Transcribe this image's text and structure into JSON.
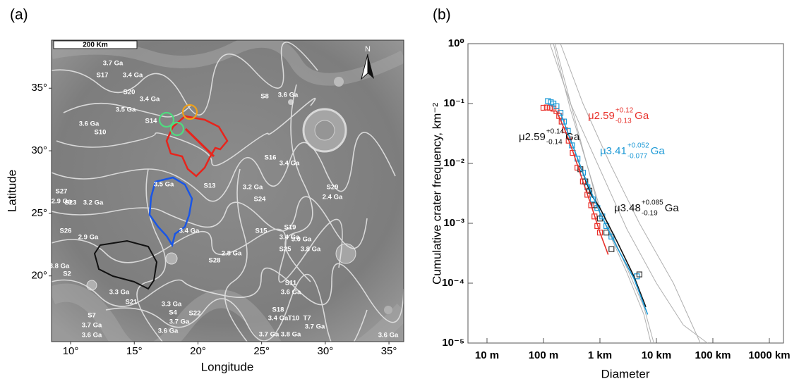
{
  "map": {
    "panel_label": "(a)",
    "scale_bar": "200 Km",
    "north": "N",
    "x_axis_label": "Longitude",
    "y_axis_label": "Latitude",
    "xlim": [
      8.5,
      36.16
    ],
    "ylim": [
      14.75,
      38.84
    ],
    "xticks": [
      {
        "value": 10,
        "label": "10°"
      },
      {
        "value": 15,
        "label": "15°"
      },
      {
        "value": 20,
        "label": "20°"
      },
      {
        "value": 25,
        "label": "25°"
      },
      {
        "value": 30,
        "label": "30°"
      },
      {
        "value": 35,
        "label": "35°"
      }
    ],
    "yticks": [
      {
        "value": 20,
        "label": "20°"
      },
      {
        "value": 25,
        "label": "25°"
      },
      {
        "value": 30,
        "label": "30°"
      },
      {
        "value": 35,
        "label": "35°"
      }
    ],
    "unit_labels": [
      "3.7 Ga",
      "S17",
      "3.4 Ga",
      "S20",
      "3.4 Ga",
      "3.5 Ga",
      "S14",
      "3.6 Ga",
      "S10",
      "S8",
      "3.6 Ga",
      "S16",
      "3.4 Ga",
      "S13",
      "3.5 Ga",
      "3.2 Ga",
      "S24",
      "S29",
      "2.4 Ga",
      "S27",
      "2.9 Ga",
      "S23",
      "3.2 Ga",
      "S26",
      "2.9 Ga",
      "3.4 Ga",
      "S15",
      "S19",
      "3.4 Ga",
      "3.0 Ga",
      "S25",
      "3.8 Ga",
      "2.8 Ga",
      "S28",
      "3.8 Ga",
      "S2",
      "3.3 Ga",
      "S21",
      "S11",
      "3.6 Ga",
      "3.3 Ga",
      "S4",
      "S22",
      "3.7 Ga",
      "S18",
      "3.4 Ga",
      "T10",
      "T7",
      "3.7 Ga",
      "S7",
      "3.7 Ga",
      "3.6 Ga",
      "3.6 Ga",
      "3.7 Ga",
      "3.8 Ga",
      "3.6 Ga"
    ]
  },
  "chart_data": {
    "type": "line",
    "panel_label": "(b)",
    "x_label": "Diameter",
    "y_label": "Cumulative crater frequency, km⁻²",
    "xscale": "log",
    "yscale": "log",
    "xlim": [
      0.0046,
      1780
    ],
    "ylim": [
      1e-05,
      1
    ],
    "xticks": [
      {
        "value": 0.01,
        "label": "10 m"
      },
      {
        "value": 0.1,
        "label": "100 m"
      },
      {
        "value": 1,
        "label": "1 km"
      },
      {
        "value": 10,
        "label": "10 km"
      },
      {
        "value": 100,
        "label": "100 km"
      },
      {
        "value": 1000,
        "label": "1000 km"
      }
    ],
    "yticks": [
      {
        "value": 1e-05,
        "label": "10⁻⁵"
      },
      {
        "value": 0.0001,
        "label": "10⁻⁴"
      },
      {
        "value": 0.001,
        "label": "10⁻³"
      },
      {
        "value": 0.01,
        "label": "10⁻²"
      },
      {
        "value": 0.1,
        "label": "10⁻¹"
      },
      {
        "value": 1,
        "label": "10⁰"
      }
    ],
    "series": [
      {
        "color": "#b0b0b0",
        "marker": "none",
        "x": [
          0.13,
          0.3,
          1,
          3,
          10,
          30,
          80
        ],
        "values": [
          1,
          0.1,
          0.008,
          0.0008,
          0.0001,
          2e-05,
          1e-05
        ]
      },
      {
        "color": "#b0b0b0",
        "marker": "none",
        "x": [
          0.2,
          0.5,
          1.5,
          5,
          20,
          60
        ],
        "values": [
          1,
          0.1,
          0.01,
          0.001,
          0.0001,
          1e-05
        ]
      },
      {
        "color": "#b0b0b0",
        "marker": "none",
        "x": [
          0.15,
          0.3,
          1,
          3,
          6,
          9
        ],
        "values": [
          1,
          0.08,
          0.0018,
          0.00018,
          4e-05,
          1e-05
        ]
      },
      {
        "color": "#b0b0b0",
        "marker": "none",
        "x": [
          0.16,
          0.35,
          1,
          3,
          6,
          8
        ],
        "values": [
          1,
          0.06,
          0.0015,
          0.00015,
          3e-05,
          1e-05
        ]
      },
      {
        "color": "#e8302a",
        "marker": "square",
        "x": [
          0.1,
          0.115,
          0.13,
          0.15,
          0.17,
          0.19,
          0.21,
          0.24,
          0.28,
          0.33,
          0.4,
          0.5,
          0.6,
          0.7,
          0.8,
          0.9,
          1.0
        ],
        "values": [
          0.085,
          0.086,
          0.085,
          0.082,
          0.075,
          0.062,
          0.05,
          0.036,
          0.024,
          0.015,
          0.0085,
          0.005,
          0.003,
          0.002,
          0.0013,
          0.0009,
          0.0007
        ]
      },
      {
        "color": "#1e9ad6",
        "marker": "square",
        "x": [
          0.12,
          0.135,
          0.15,
          0.17,
          0.2,
          0.23,
          0.27,
          0.32,
          0.4,
          0.5,
          0.6,
          0.75,
          0.9,
          1.1,
          1.3,
          1.6,
          4.5
        ],
        "values": [
          0.11,
          0.105,
          0.1,
          0.09,
          0.07,
          0.05,
          0.035,
          0.02,
          0.012,
          0.007,
          0.004,
          0.0025,
          0.0018,
          0.0013,
          0.0009,
          0.0006,
          0.00013
        ]
      },
      {
        "color": "#333333",
        "marker": "square",
        "x": [
          0.45,
          0.55,
          0.65,
          0.8,
          1.0,
          1.3,
          1.6,
          5.0
        ],
        "values": [
          0.008,
          0.005,
          0.0035,
          0.002,
          0.0012,
          0.0007,
          0.00037,
          0.00014
        ]
      },
      {
        "color": "#e8302a",
        "marker": "none",
        "x": [
          0.17,
          0.24,
          0.33,
          0.5,
          0.7,
          1.0,
          1.4
        ],
        "values": [
          0.075,
          0.036,
          0.016,
          0.005,
          0.002,
          0.0007,
          0.0003
        ]
      },
      {
        "color": "#111111",
        "marker": "none",
        "x": [
          0.4,
          0.7,
          1.0,
          2,
          4,
          6.5
        ],
        "values": [
          0.012,
          0.003,
          0.0018,
          0.0005,
          0.00013,
          4e-05
        ]
      },
      {
        "color": "#1e9ad6",
        "marker": "none",
        "x": [
          0.2,
          0.3,
          0.5,
          1,
          2,
          4,
          7
        ],
        "values": [
          0.07,
          0.025,
          0.007,
          0.0015,
          0.0004,
          0.00012,
          3e-05
        ]
      }
    ],
    "annotations": [
      {
        "text": "μ2.59",
        "upper": "+0.12",
        "lower": "-0.13",
        "unit": "Ga",
        "color": "#e8302a"
      },
      {
        "text": "μ2.59",
        "upper": "+0.14",
        "lower": "-0.14",
        "unit": "Ga",
        "color": "#111111"
      },
      {
        "text": "μ3.41",
        "upper": "+0.052",
        "lower": "-0.077",
        "unit": "Ga",
        "color": "#1e9ad6"
      },
      {
        "text": "μ3.48",
        "upper": "+0.085",
        "lower": "-0.19",
        "unit": "Ga",
        "color": "#111111"
      }
    ]
  }
}
